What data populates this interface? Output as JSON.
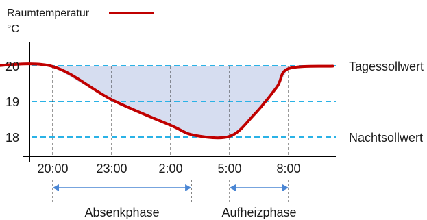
{
  "chart_data": {
    "type": "line",
    "legend": {
      "label": "Raumtemperatur",
      "color": "#c00000",
      "placement": "top-left"
    },
    "ylabel": "°C",
    "xlabel": "",
    "categories": [
      "20:00",
      "23:00",
      "2:00",
      "5:00",
      "8:00"
    ],
    "yticks": [
      "20",
      "19",
      "18"
    ],
    "ylim": [
      17.8,
      20.5
    ],
    "series": [
      {
        "name": "Raumtemperatur",
        "color": "#c00000",
        "points": [
          {
            "x": -1.0,
            "y": 20.0
          },
          {
            "x": 0.0,
            "y": 19.98
          },
          {
            "x": 1.0,
            "y": 19.05
          },
          {
            "x": 2.0,
            "y": 18.33
          },
          {
            "x": 2.4,
            "y": 18.05
          },
          {
            "x": 3.0,
            "y": 18.02
          },
          {
            "x": 3.4,
            "y": 18.6
          },
          {
            "x": 3.8,
            "y": 19.4
          },
          {
            "x": 4.0,
            "y": 19.92
          },
          {
            "x": 4.75,
            "y": 19.99
          }
        ]
      }
    ],
    "reference_lines": [
      {
        "label": "Tagessollwert",
        "y": 20,
        "color": "#2ab2e6"
      },
      {
        "label": "",
        "y": 19,
        "color": "#2ab2e6"
      },
      {
        "label": "Nachtsollwert",
        "y": 18,
        "color": "#2ab2e6"
      }
    ],
    "shaded_region": {
      "from_x": 0.0,
      "to_x": 4.0,
      "upper_y": 20,
      "fill": "#d6ddf0"
    },
    "phases": [
      {
        "label": "Absenkphase",
        "from_x": 0.0,
        "to_x": 2.35
      },
      {
        "label": "Aufheizphase",
        "from_x": 3.0,
        "to_x": 4.0
      }
    ],
    "grid": {
      "horizontal": "dashed",
      "vertical": "dashed"
    }
  }
}
